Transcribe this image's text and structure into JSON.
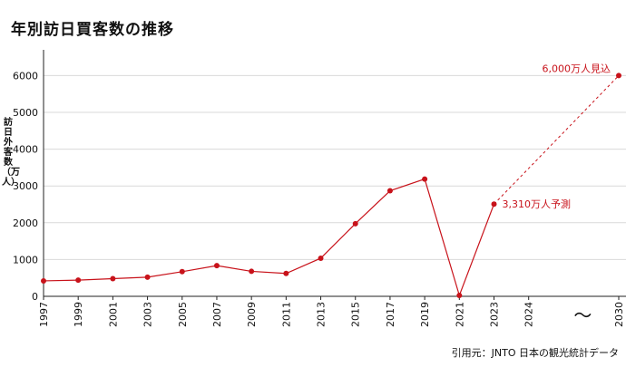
{
  "title": "年別訪日買客数の推移",
  "source": "引用元：JNTO 日本の観光統計データ",
  "chart_data": {
    "type": "line",
    "ylabel": "訪日外客数（万人）",
    "ylim": [
      0,
      6700
    ],
    "yticks": [
      0,
      1000,
      2000,
      3000,
      4000,
      5000,
      6000
    ],
    "grid": true,
    "xtick_labels": [
      "1997",
      "1999",
      "2001",
      "2003",
      "2005",
      "2007",
      "2009",
      "2011",
      "2013",
      "2015",
      "2017",
      "2019",
      "2021",
      "2023",
      "2024",
      "2030"
    ],
    "axis_break_symbol": "〜",
    "series": [
      {
        "style": "solid",
        "color": "#c8121a",
        "x": [
          "1997",
          "1999",
          "2001",
          "2003",
          "2005",
          "2007",
          "2009",
          "2011",
          "2013",
          "2015",
          "2017",
          "2019",
          "2021",
          "2023"
        ],
        "values": [
          420,
          440,
          480,
          520,
          670,
          835,
          679,
          622,
          1036,
          1974,
          2869,
          3188,
          25,
          2507
        ]
      },
      {
        "style": "dashed",
        "color": "#c8121a",
        "x": [
          "2023",
          "2030"
        ],
        "values": [
          2507,
          6000
        ]
      }
    ],
    "annotations": [
      {
        "x": "2023",
        "y": 2507,
        "text": "3,310万人予測"
      },
      {
        "x": "2030",
        "y": 6000,
        "text": "6,000万人見込"
      }
    ]
  }
}
